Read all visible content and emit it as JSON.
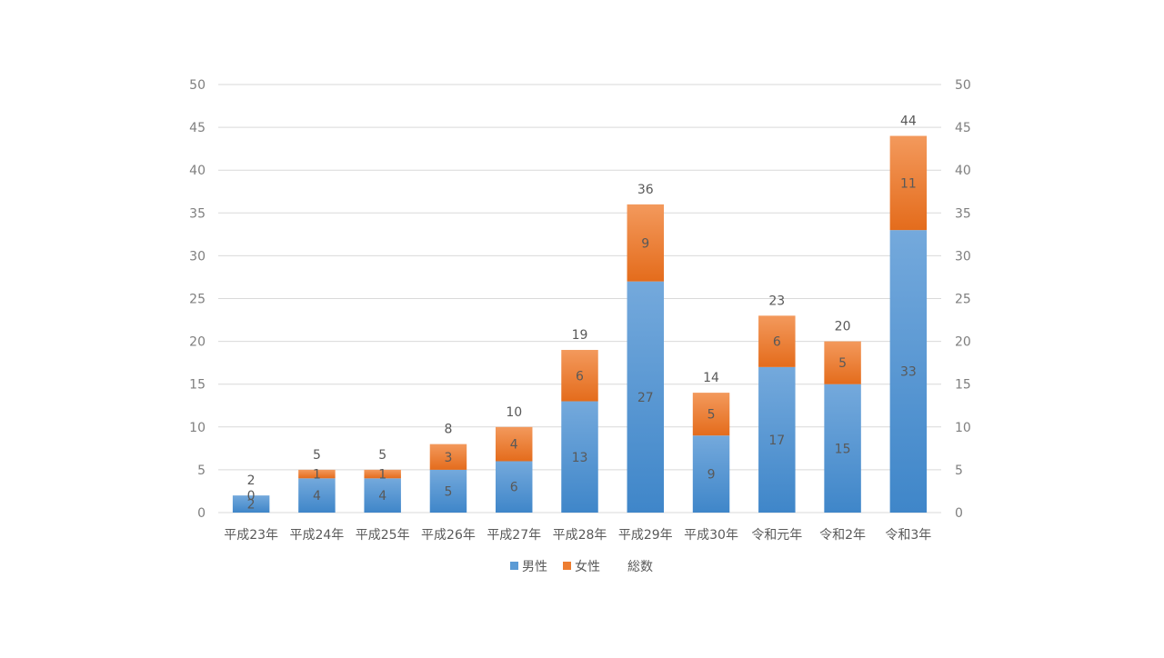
{
  "chart_data": {
    "type": "bar",
    "stacked": true,
    "categories": [
      "平成23年",
      "平成24年",
      "平成25年",
      "平成26年",
      "平成27年",
      "平成28年",
      "平成29年",
      "平成30年",
      "令和元年",
      "令和2年",
      "令和3年"
    ],
    "series": [
      {
        "name": "男性",
        "values": [
          2,
          4,
          4,
          5,
          6,
          13,
          27,
          9,
          17,
          15,
          33
        ],
        "color": "#5b9bd5"
      },
      {
        "name": "女性",
        "values": [
          0,
          1,
          1,
          3,
          4,
          6,
          9,
          5,
          6,
          5,
          11
        ],
        "color": "#ed7d31"
      }
    ],
    "totals": {
      "name": "総数",
      "values": [
        2,
        5,
        5,
        8,
        10,
        19,
        36,
        14,
        23,
        20,
        44
      ]
    },
    "ylim": [
      0,
      50
    ],
    "yticks": [
      0,
      5,
      10,
      15,
      20,
      25,
      30,
      35,
      40,
      45,
      50
    ],
    "secondary_ylim": [
      0,
      50
    ],
    "grid": true,
    "legend_position": "bottom"
  }
}
